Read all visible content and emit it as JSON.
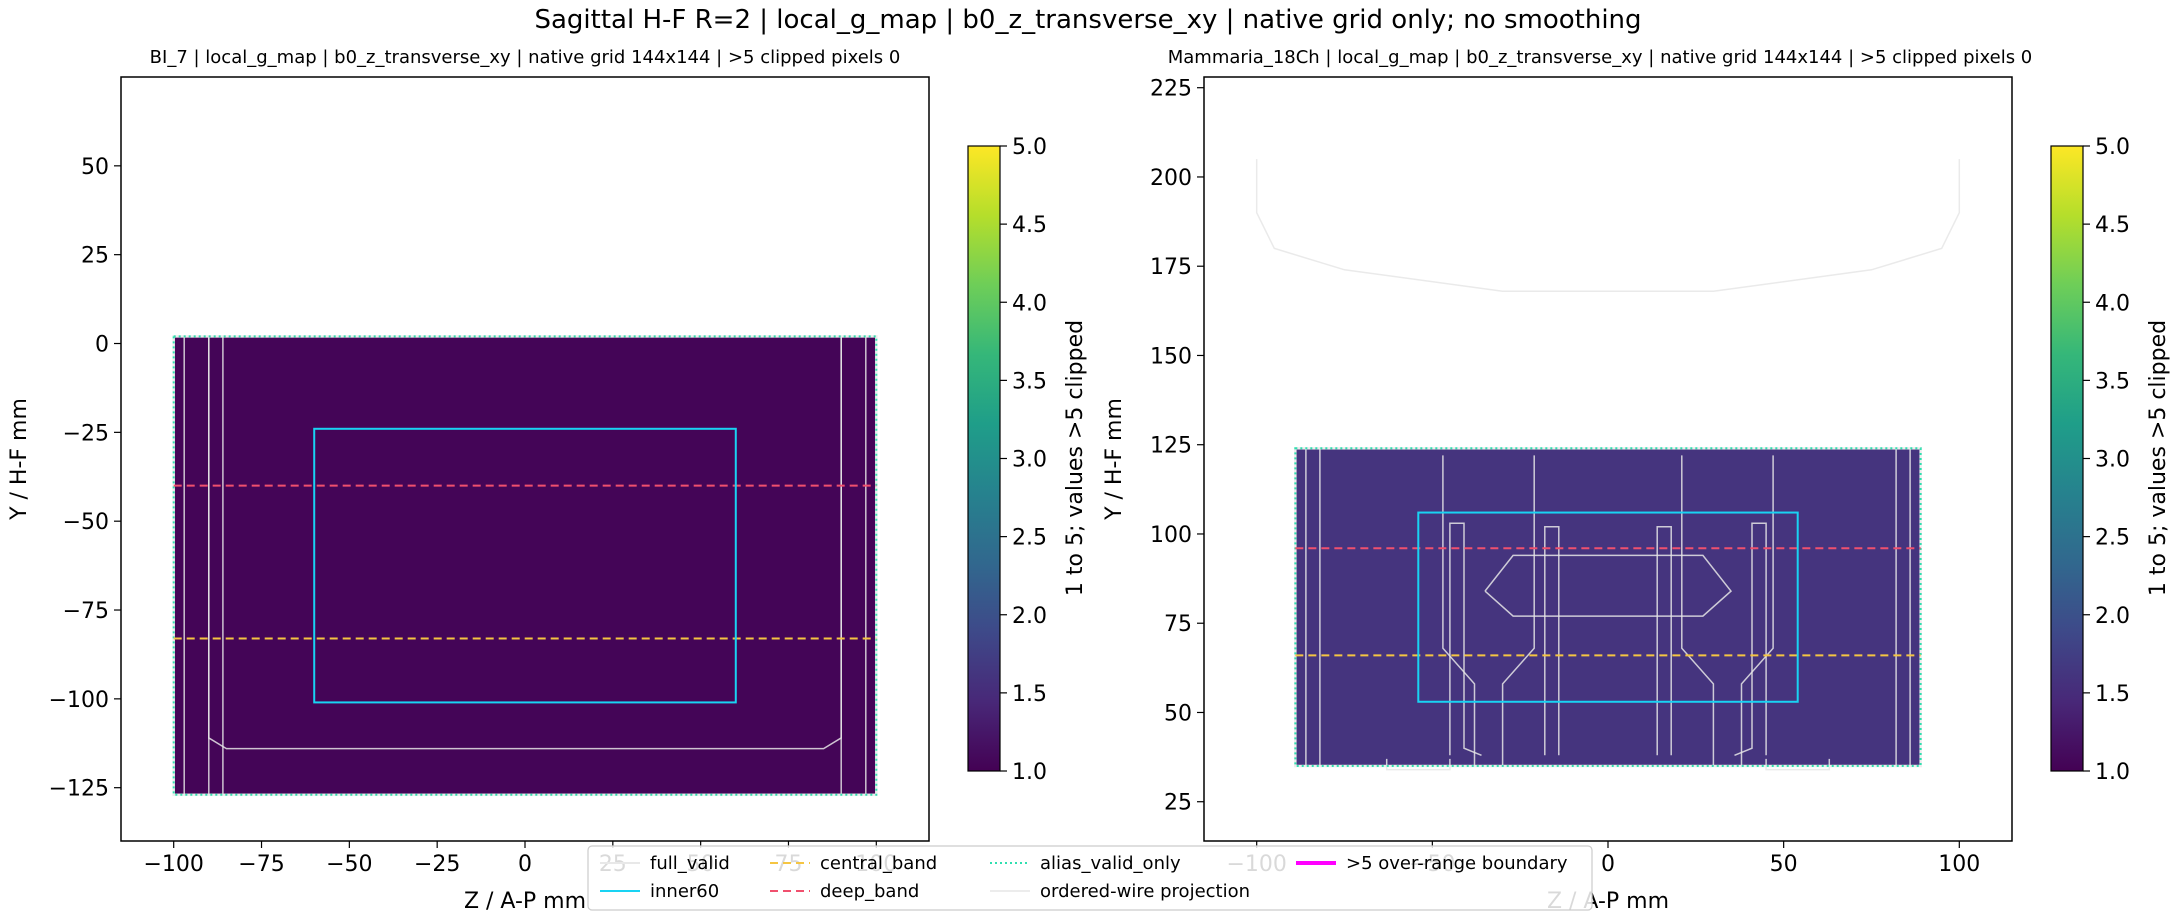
{
  "figure": {
    "suptitle": "Sagittal H-F R=2 | local_g_map | b0_z_transverse_xy | native grid only; no smoothing"
  },
  "legend": {
    "entries": [
      {
        "label": "full_valid",
        "color": "#e8e8e8",
        "style": "solid"
      },
      {
        "label": "inner60",
        "color": "#19d3f3",
        "style": "solid"
      },
      {
        "label": "central_band",
        "color": "#f5c542",
        "style": "dashed"
      },
      {
        "label": "deep_band",
        "color": "#f0506e",
        "style": "dashed"
      },
      {
        "label": "alias_valid_only",
        "color": "#2fe0b0",
        "style": "dotted"
      },
      {
        "label": "ordered-wire projection",
        "color": "#ececec",
        "style": "solid"
      },
      {
        "label": ">5 over-range boundary",
        "color": "#ff00ff",
        "style": "solid"
      }
    ]
  },
  "colormap": {
    "name": "viridis",
    "stops": [
      "#440154",
      "#482878",
      "#3e4989",
      "#31688e",
      "#26828e",
      "#1f9e89",
      "#35b779",
      "#6ece58",
      "#b5de2b",
      "#fde725"
    ]
  },
  "chart_data": [
    {
      "type": "heatmap",
      "title": "BI_7 | local_g_map | b0_z_transverse_xy | native grid 144x144 | >5 clipped pixels 0",
      "xlabel": "Z / A-P mm",
      "ylabel": "Y / H-F mm",
      "xlim": [
        -115,
        115
      ],
      "ylim": [
        -140,
        75
      ],
      "xticks": [
        -100,
        -75,
        -50,
        -25,
        0,
        25,
        50,
        75,
        100
      ],
      "xtick_labels": [
        "−100",
        "−75",
        "−50",
        "−25",
        "0",
        "25",
        "50",
        "75",
        "100"
      ],
      "yticks": [
        -125,
        -100,
        -75,
        -50,
        -25,
        0,
        25,
        50
      ],
      "ytick_labels": [
        "−125",
        "−100",
        "−75",
        "−50",
        "−25",
        "0",
        "25",
        "50"
      ],
      "data_extent": {
        "x": [
          -100,
          100
        ],
        "y": [
          -127,
          2
        ]
      },
      "base_value": 1.04,
      "full_valid": {
        "x": [
          -100,
          100
        ],
        "y": [
          -127,
          2
        ]
      },
      "inner60": {
        "x": [
          -60,
          60
        ],
        "y": [
          -101,
          -24
        ]
      },
      "central_band_y": -83,
      "deep_band_y": -40,
      "wire_paths": [
        [
          [
            -90,
            2
          ],
          [
            -90,
            -111
          ],
          [
            -85,
            -114
          ],
          [
            85,
            -114
          ],
          [
            90,
            -111
          ],
          [
            90,
            2
          ]
        ],
        [
          [
            -97,
            2
          ],
          [
            -97,
            -127
          ]
        ],
        [
          [
            97,
            2
          ],
          [
            97,
            -127
          ]
        ],
        [
          [
            -90,
            2
          ],
          [
            -90,
            -127
          ]
        ],
        [
          [
            -86,
            2
          ],
          [
            -86,
            -127
          ]
        ],
        [
          [
            90,
            2
          ],
          [
            90,
            -127
          ]
        ]
      ],
      "colorbar": {
        "label": "1 to 5; values >5 clipped",
        "range": [
          1,
          5
        ],
        "ticks": [
          "1.0",
          "1.5",
          "2.0",
          "2.5",
          "3.0",
          "3.5",
          "4.0",
          "4.5",
          "5.0"
        ]
      }
    },
    {
      "type": "heatmap",
      "title": "Mammaria_18Ch | local_g_map | b0_z_transverse_xy | native grid 144x144 | >5 clipped pixels 0",
      "xlabel": "Z / A-P mm",
      "ylabel": "Y / H-F mm",
      "xlim": [
        -115,
        115
      ],
      "ylim": [
        14,
        228
      ],
      "xticks": [
        -100,
        -50,
        0,
        50,
        100
      ],
      "xtick_labels": [
        "−100",
        "−50",
        "0",
        "50",
        "100"
      ],
      "yticks": [
        25,
        50,
        75,
        100,
        125,
        150,
        175,
        200,
        225
      ],
      "ytick_labels": [
        "25",
        "50",
        "75",
        "100",
        "125",
        "150",
        "175",
        "200",
        "225"
      ],
      "data_extent": {
        "x": [
          -89,
          89
        ],
        "y": [
          35,
          124
        ]
      },
      "base_value": 1.6,
      "full_valid": {
        "x": [
          -89,
          89
        ],
        "y": [
          35,
          124
        ]
      },
      "inner60": {
        "x": [
          -54,
          54
        ],
        "y": [
          53,
          106
        ]
      },
      "central_band_y": 66,
      "deep_band_y": 96,
      "wire_paths": [
        [
          [
            -100,
            205
          ],
          [
            -100,
            190
          ],
          [
            -95,
            180
          ],
          [
            -75,
            174
          ],
          [
            -30,
            168
          ],
          [
            30,
            168
          ],
          [
            75,
            174
          ],
          [
            95,
            180
          ],
          [
            100,
            190
          ],
          [
            100,
            205
          ]
        ],
        [
          [
            -45,
            38
          ],
          [
            -45,
            103
          ],
          [
            -41,
            103
          ],
          [
            -41,
            40
          ],
          [
            -36,
            38
          ]
        ],
        [
          [
            45,
            38
          ],
          [
            45,
            103
          ],
          [
            41,
            103
          ],
          [
            41,
            40
          ],
          [
            36,
            38
          ]
        ],
        [
          [
            -18,
            38
          ],
          [
            -18,
            102
          ],
          [
            -14,
            102
          ],
          [
            -14,
            38
          ]
        ],
        [
          [
            18,
            38
          ],
          [
            18,
            102
          ],
          [
            14,
            102
          ],
          [
            14,
            38
          ]
        ],
        [
          [
            -35,
            84
          ],
          [
            -27,
            94
          ],
          [
            27,
            94
          ],
          [
            35,
            84
          ],
          [
            27,
            77
          ],
          [
            -27,
            77
          ],
          [
            -35,
            84
          ]
        ],
        [
          [
            -63,
            37
          ],
          [
            -63,
            34
          ],
          [
            -45,
            34
          ],
          [
            -45,
            37
          ]
        ],
        [
          [
            45,
            37
          ],
          [
            45,
            34
          ],
          [
            63,
            34
          ],
          [
            63,
            37
          ]
        ],
        [
          [
            -47,
            122
          ],
          [
            -47,
            68
          ],
          [
            -38,
            58
          ],
          [
            -38,
            35
          ],
          [
            -30,
            35
          ],
          [
            -30,
            58
          ],
          [
            -21,
            68
          ],
          [
            -21,
            122
          ]
        ],
        [
          [
            47,
            122
          ],
          [
            47,
            68
          ],
          [
            38,
            58
          ],
          [
            38,
            35
          ],
          [
            30,
            35
          ],
          [
            30,
            58
          ],
          [
            21,
            68
          ],
          [
            21,
            122
          ]
        ],
        [
          [
            -86,
            124
          ],
          [
            -86,
            35
          ]
        ],
        [
          [
            86,
            124
          ],
          [
            86,
            35
          ]
        ],
        [
          [
            -82,
            124
          ],
          [
            -82,
            35
          ]
        ],
        [
          [
            82,
            124
          ],
          [
            82,
            35
          ]
        ]
      ],
      "colorbar": {
        "label": "1 to 5; values >5 clipped",
        "range": [
          1,
          5
        ],
        "ticks": [
          "1.0",
          "1.5",
          "2.0",
          "2.5",
          "3.0",
          "3.5",
          "4.0",
          "4.5",
          "5.0"
        ]
      }
    }
  ]
}
